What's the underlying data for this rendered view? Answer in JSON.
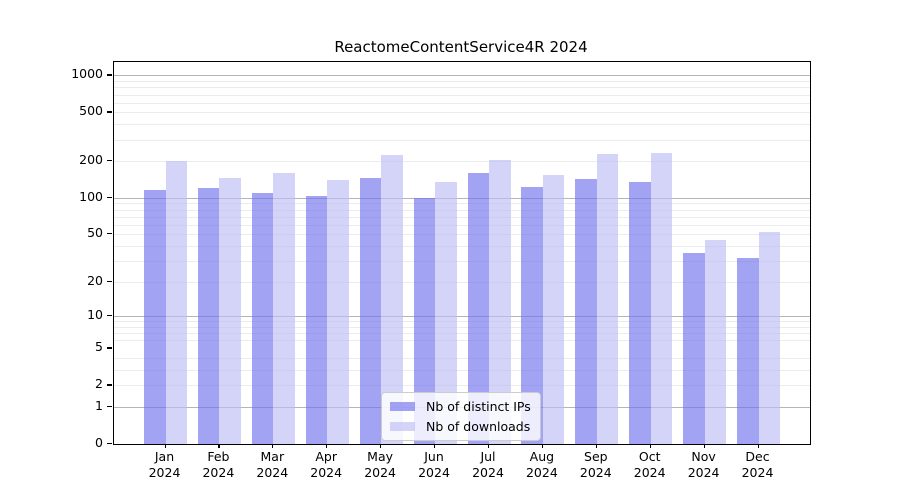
{
  "title": "ReactomeContentService4R 2024",
  "legend": {
    "items": [
      {
        "label": "Nb of distinct IPs",
        "color": "#7272ee"
      },
      {
        "label": "Nb of downloads",
        "color": "#bdbdf6"
      }
    ],
    "position": "lower center"
  },
  "chart_data": {
    "type": "bar",
    "title": "ReactomeContentService4R 2024",
    "categories": [
      "Jan 2024",
      "Feb 2024",
      "Mar 2024",
      "Apr 2024",
      "May 2024",
      "Jun 2024",
      "Jul 2024",
      "Aug 2024",
      "Sep 2024",
      "Oct 2024",
      "Nov 2024",
      "Dec 2024"
    ],
    "series": [
      {
        "name": "Nb of distinct IPs",
        "color": "#7272ee",
        "values": [
          115,
          120,
          110,
          103,
          146,
          100,
          160,
          122,
          143,
          135,
          35,
          32
        ]
      },
      {
        "name": "Nb of downloads",
        "color": "#bdbdf6",
        "values": [
          202,
          146,
          160,
          140,
          226,
          135,
          203,
          155,
          228,
          233,
          45,
          52
        ]
      }
    ],
    "xlabel": "",
    "ylabel": "",
    "yscale": "log1p",
    "ylim": [
      0,
      1287
    ],
    "yticks": [
      0,
      1,
      2,
      5,
      10,
      20,
      50,
      100,
      200,
      500,
      1000
    ],
    "major_gridlines": [
      1,
      10,
      100,
      1000
    ],
    "minor_gridlines": [
      2,
      3,
      4,
      6,
      7,
      8,
      9,
      20,
      30,
      40,
      50,
      60,
      70,
      80,
      90,
      200,
      300,
      400,
      500,
      600,
      700,
      800,
      900
    ],
    "grid": true,
    "bar_opacity": 0.65,
    "legend_position": "lower center"
  }
}
